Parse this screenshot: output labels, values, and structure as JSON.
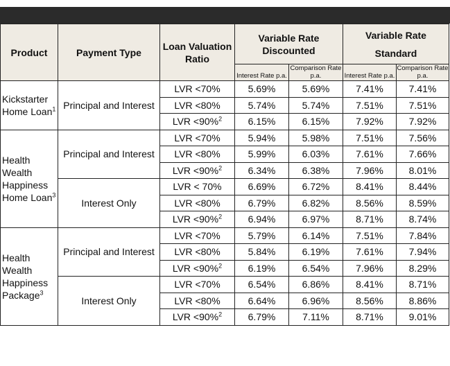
{
  "header": {
    "product": "Product",
    "payment_type": "Payment Type",
    "lvr": "Loan Valuation Ratio",
    "group_discounted": "Variable Rate Discounted",
    "group_standard_line1": "Variable Rate",
    "group_standard_line2": "Standard",
    "sub_interest": "Interest Rate p.a.",
    "sub_comparison": "Comparison Rate p.a."
  },
  "products": {
    "kickstarter": "Kickstarter Home Loan",
    "kickstarter_sup": "1",
    "hwh_home": "Health Wealth Happiness Home Loan",
    "hwh_home_sup": "3",
    "hwh_package": "Health Wealth Happiness Package",
    "hwh_package_sup": "3"
  },
  "payment_types": {
    "pi": "Principal and Interest",
    "io": "Interest Only"
  },
  "lvr_sup": "2",
  "rows": [
    {
      "lvr": "LVR <70%",
      "sup": "",
      "d_ir": "5.69%",
      "d_cr": "5.69%",
      "s_ir": "7.41%",
      "s_cr": "7.41%"
    },
    {
      "lvr": "LVR <80%",
      "sup": "",
      "d_ir": "5.74%",
      "d_cr": "5.74%",
      "s_ir": "7.51%",
      "s_cr": "7.51%"
    },
    {
      "lvr": "LVR <90%",
      "sup": "2",
      "d_ir": "6.15%",
      "d_cr": "6.15%",
      "s_ir": "7.92%",
      "s_cr": "7.92%"
    },
    {
      "lvr": "LVR <70%",
      "sup": "",
      "d_ir": "5.94%",
      "d_cr": "5.98%",
      "s_ir": "7.51%",
      "s_cr": "7.56%"
    },
    {
      "lvr": "LVR <80%",
      "sup": "",
      "d_ir": "5.99%",
      "d_cr": "6.03%",
      "s_ir": "7.61%",
      "s_cr": "7.66%"
    },
    {
      "lvr": "LVR <90%",
      "sup": "2",
      "d_ir": "6.34%",
      "d_cr": "6.38%",
      "s_ir": "7.96%",
      "s_cr": "8.01%"
    },
    {
      "lvr": "LVR < 70%",
      "sup": "",
      "d_ir": "6.69%",
      "d_cr": "6.72%",
      "s_ir": "8.41%",
      "s_cr": "8.44%"
    },
    {
      "lvr": "LVR <80%",
      "sup": "",
      "d_ir": "6.79%",
      "d_cr": "6.82%",
      "s_ir": "8.56%",
      "s_cr": "8.59%"
    },
    {
      "lvr": "LVR <90%",
      "sup": "2",
      "d_ir": "6.94%",
      "d_cr": "6.97%",
      "s_ir": "8.71%",
      "s_cr": "8.74%"
    },
    {
      "lvr": "LVR <70%",
      "sup": "",
      "d_ir": "5.79%",
      "d_cr": "6.14%",
      "s_ir": "7.51%",
      "s_cr": "7.84%"
    },
    {
      "lvr": "LVR <80%",
      "sup": "",
      "d_ir": "5.84%",
      "d_cr": "6.19%",
      "s_ir": "7.61%",
      "s_cr": "7.94%"
    },
    {
      "lvr": "LVR <90%",
      "sup": "2",
      "d_ir": "6.19%",
      "d_cr": "6.54%",
      "s_ir": "7.96%",
      "s_cr": "8.29%"
    },
    {
      "lvr": "LVR <70%",
      "sup": "",
      "d_ir": "6.54%",
      "d_cr": "6.86%",
      "s_ir": "8.41%",
      "s_cr": "8.71%"
    },
    {
      "lvr": "LVR <80%",
      "sup": "",
      "d_ir": "6.64%",
      "d_cr": "6.96%",
      "s_ir": "8.56%",
      "s_cr": "8.86%"
    },
    {
      "lvr": "LVR <90%",
      "sup": "2",
      "d_ir": "6.79%",
      "d_cr": "7.11%",
      "s_ir": "8.71%",
      "s_cr": "9.01%"
    }
  ]
}
